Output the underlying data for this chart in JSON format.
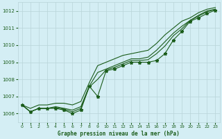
{
  "xlabel": "Graphe pression niveau de la mer (hPa)",
  "bg_color": "#d4eef4",
  "grid_color": "#b8d4d8",
  "line_color": "#1a5c1a",
  "xmin": 0,
  "xmax": 23,
  "ymin": 1005.5,
  "ymax": 1012.5,
  "yticks": [
    1006,
    1007,
    1008,
    1009,
    1010,
    1011,
    1012
  ],
  "xticks": [
    0,
    1,
    2,
    3,
    4,
    5,
    6,
    7,
    8,
    9,
    10,
    11,
    12,
    13,
    14,
    15,
    16,
    17,
    18,
    19,
    20,
    21,
    22,
    23
  ],
  "main_line": [
    1006.5,
    1006.1,
    1006.3,
    1006.3,
    1006.3,
    1006.2,
    1006.0,
    1006.2,
    1007.6,
    1007.0,
    1008.5,
    1008.6,
    1008.8,
    1009.0,
    1009.0,
    1009.0,
    1009.1,
    1009.5,
    1010.3,
    1010.8,
    1011.4,
    1011.6,
    1011.85,
    1012.05
  ],
  "line_upper": [
    1006.5,
    1006.3,
    1006.5,
    1006.5,
    1006.6,
    1006.6,
    1006.5,
    1006.7,
    1007.8,
    1008.8,
    1009.0,
    1009.2,
    1009.4,
    1009.5,
    1009.6,
    1009.7,
    1010.1,
    1010.6,
    1011.0,
    1011.4,
    1011.6,
    1011.9,
    1012.1,
    1012.2
  ],
  "line_mid1": [
    1006.5,
    1006.1,
    1006.3,
    1006.3,
    1006.4,
    1006.3,
    1006.2,
    1006.4,
    1007.6,
    1008.4,
    1008.6,
    1008.8,
    1009.0,
    1009.2,
    1009.2,
    1009.3,
    1009.7,
    1010.2,
    1010.7,
    1011.1,
    1011.45,
    1011.75,
    1012.0,
    1012.1
  ],
  "line_mid2": [
    1006.5,
    1006.1,
    1006.3,
    1006.3,
    1006.35,
    1006.25,
    1006.1,
    1006.3,
    1007.55,
    1008.0,
    1008.55,
    1008.7,
    1008.9,
    1009.1,
    1009.1,
    1009.15,
    1009.5,
    1009.95,
    1010.55,
    1010.95,
    1011.45,
    1011.7,
    1011.95,
    1012.1
  ]
}
